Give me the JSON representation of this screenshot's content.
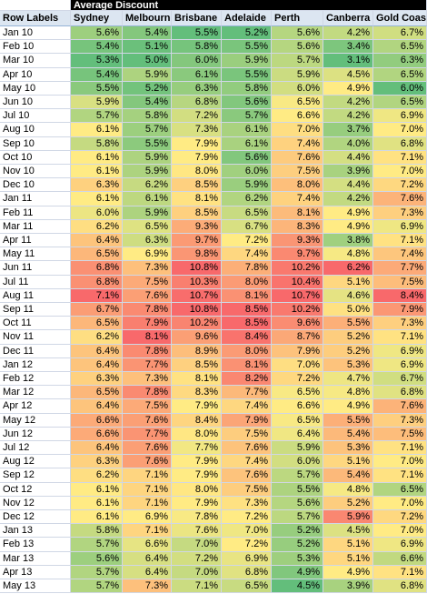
{
  "title": "Average Discount",
  "columns": [
    "Row Labels",
    "Sydney",
    "Melbourne",
    "Brisbane",
    "Adelaide",
    "Perth",
    "Canberra",
    "Gold Coast"
  ],
  "rows": [
    {
      "label": "Jan 10",
      "values": [
        "5.6%",
        "5.4%",
        "5.5%",
        "5.2%",
        "5.6%",
        "4.2%",
        "6.7%"
      ]
    },
    {
      "label": "Feb 10",
      "values": [
        "5.4%",
        "5.1%",
        "5.8%",
        "5.5%",
        "5.6%",
        "3.4%",
        "6.5%"
      ]
    },
    {
      "label": "Mar 10",
      "values": [
        "5.3%",
        "5.0%",
        "6.0%",
        "5.9%",
        "5.7%",
        "3.1%",
        "6.3%"
      ]
    },
    {
      "label": "Apr 10",
      "values": [
        "5.4%",
        "5.9%",
        "6.1%",
        "5.5%",
        "5.9%",
        "4.5%",
        "6.5%"
      ]
    },
    {
      "label": "May 10",
      "values": [
        "5.5%",
        "5.2%",
        "6.3%",
        "5.8%",
        "6.0%",
        "4.9%",
        "6.0%"
      ]
    },
    {
      "label": "Jun 10",
      "values": [
        "5.9%",
        "5.4%",
        "6.8%",
        "5.6%",
        "6.5%",
        "4.2%",
        "6.5%"
      ]
    },
    {
      "label": "Jul 10",
      "values": [
        "5.7%",
        "5.8%",
        "7.2%",
        "5.7%",
        "6.6%",
        "4.2%",
        "6.9%"
      ]
    },
    {
      "label": "Aug 10",
      "values": [
        "6.1%",
        "5.7%",
        "7.3%",
        "6.1%",
        "7.0%",
        "3.7%",
        "7.0%"
      ]
    },
    {
      "label": "Sep 10",
      "values": [
        "5.8%",
        "5.5%",
        "7.9%",
        "6.1%",
        "7.4%",
        "4.0%",
        "6.8%"
      ]
    },
    {
      "label": "Oct 10",
      "values": [
        "6.1%",
        "5.9%",
        "7.9%",
        "5.6%",
        "7.6%",
        "4.4%",
        "7.1%"
      ]
    },
    {
      "label": "Nov 10",
      "values": [
        "6.1%",
        "5.9%",
        "8.0%",
        "6.0%",
        "7.5%",
        "3.9%",
        "7.0%"
      ]
    },
    {
      "label": "Dec 10",
      "values": [
        "6.3%",
        "6.2%",
        "8.5%",
        "5.9%",
        "8.0%",
        "4.4%",
        "7.2%"
      ]
    },
    {
      "label": "Jan 11",
      "values": [
        "6.1%",
        "6.1%",
        "8.1%",
        "6.2%",
        "7.4%",
        "4.2%",
        "7.6%"
      ]
    },
    {
      "label": "Feb 11",
      "values": [
        "6.0%",
        "5.9%",
        "8.5%",
        "6.5%",
        "8.1%",
        "4.9%",
        "7.3%"
      ]
    },
    {
      "label": "Mar 11",
      "values": [
        "6.2%",
        "6.5%",
        "9.3%",
        "6.7%",
        "8.3%",
        "4.9%",
        "6.9%"
      ]
    },
    {
      "label": "Apr 11",
      "values": [
        "6.4%",
        "6.3%",
        "9.7%",
        "7.2%",
        "9.3%",
        "3.8%",
        "7.1%"
      ]
    },
    {
      "label": "May 11",
      "values": [
        "6.5%",
        "6.9%",
        "9.8%",
        "7.4%",
        "9.7%",
        "4.8%",
        "7.4%"
      ]
    },
    {
      "label": "Jun 11",
      "values": [
        "6.8%",
        "7.3%",
        "10.8%",
        "7.8%",
        "10.2%",
        "6.2%",
        "7.7%"
      ]
    },
    {
      "label": "Jul 11",
      "values": [
        "6.8%",
        "7.5%",
        "10.3%",
        "8.0%",
        "10.4%",
        "5.1%",
        "7.5%"
      ]
    },
    {
      "label": "Aug 11",
      "values": [
        "7.1%",
        "7.6%",
        "10.7%",
        "8.1%",
        "10.7%",
        "4.6%",
        "8.4%"
      ]
    },
    {
      "label": "Sep 11",
      "values": [
        "6.7%",
        "7.8%",
        "10.8%",
        "8.5%",
        "10.2%",
        "5.0%",
        "7.9%"
      ]
    },
    {
      "label": "Oct 11",
      "values": [
        "6.5%",
        "7.9%",
        "10.2%",
        "8.5%",
        "9.6%",
        "5.5%",
        "7.3%"
      ]
    },
    {
      "label": "Nov 11",
      "values": [
        "6.2%",
        "8.1%",
        "9.6%",
        "8.4%",
        "8.7%",
        "5.2%",
        "7.1%"
      ]
    },
    {
      "label": "Dec 11",
      "values": [
        "6.4%",
        "7.8%",
        "8.9%",
        "8.0%",
        "7.9%",
        "5.2%",
        "6.9%"
      ]
    },
    {
      "label": "Jan 12",
      "values": [
        "6.4%",
        "7.7%",
        "8.5%",
        "8.1%",
        "7.0%",
        "5.3%",
        "6.9%"
      ]
    },
    {
      "label": "Feb 12",
      "values": [
        "6.3%",
        "7.3%",
        "8.1%",
        "8.2%",
        "7.2%",
        "4.7%",
        "6.7%"
      ]
    },
    {
      "label": "Mar 12",
      "values": [
        "6.5%",
        "7.8%",
        "8.3%",
        "7.7%",
        "6.5%",
        "4.8%",
        "6.8%"
      ]
    },
    {
      "label": "Apr 12",
      "values": [
        "6.4%",
        "7.5%",
        "7.9%",
        "7.4%",
        "6.6%",
        "4.9%",
        "7.6%"
      ]
    },
    {
      "label": "May 12",
      "values": [
        "6.6%",
        "7.6%",
        "8.4%",
        "7.9%",
        "6.5%",
        "5.5%",
        "7.3%"
      ]
    },
    {
      "label": "Jun 12",
      "values": [
        "6.6%",
        "7.7%",
        "8.0%",
        "7.5%",
        "6.4%",
        "5.4%",
        "7.5%"
      ]
    },
    {
      "label": "Jul 12",
      "values": [
        "6.4%",
        "7.6%",
        "7.7%",
        "7.6%",
        "5.9%",
        "5.3%",
        "7.1%"
      ]
    },
    {
      "label": "Aug 12",
      "values": [
        "6.3%",
        "7.6%",
        "7.9%",
        "7.4%",
        "6.0%",
        "5.1%",
        "7.0%"
      ]
    },
    {
      "label": "Sep 12",
      "values": [
        "6.2%",
        "7.1%",
        "7.9%",
        "7.6%",
        "5.7%",
        "5.4%",
        "7.1%"
      ]
    },
    {
      "label": "Oct 12",
      "values": [
        "6.1%",
        "7.1%",
        "8.0%",
        "7.5%",
        "5.5%",
        "4.8%",
        "6.5%"
      ]
    },
    {
      "label": "Nov 12",
      "values": [
        "6.1%",
        "7.1%",
        "7.9%",
        "7.3%",
        "5.6%",
        "5.2%",
        "7.0%"
      ]
    },
    {
      "label": "Dec 12",
      "values": [
        "6.1%",
        "6.9%",
        "7.8%",
        "7.2%",
        "5.7%",
        "5.9%",
        "7.2%"
      ]
    },
    {
      "label": "Jan 13",
      "values": [
        "5.8%",
        "7.1%",
        "7.6%",
        "7.0%",
        "5.2%",
        "4.5%",
        "7.0%"
      ]
    },
    {
      "label": "Feb 13",
      "values": [
        "5.7%",
        "6.6%",
        "7.0%",
        "7.2%",
        "5.2%",
        "5.1%",
        "6.9%"
      ]
    },
    {
      "label": "Mar 13",
      "values": [
        "5.6%",
        "6.4%",
        "7.2%",
        "6.9%",
        "5.3%",
        "5.1%",
        "6.6%"
      ]
    },
    {
      "label": "Apr 13",
      "values": [
        "5.7%",
        "6.4%",
        "7.0%",
        "6.8%",
        "4.9%",
        "4.9%",
        "7.1%"
      ]
    },
    {
      "label": "May 13",
      "values": [
        "5.7%",
        "7.3%",
        "7.1%",
        "6.5%",
        "4.5%",
        "3.9%",
        "6.8%"
      ]
    }
  ]
}
